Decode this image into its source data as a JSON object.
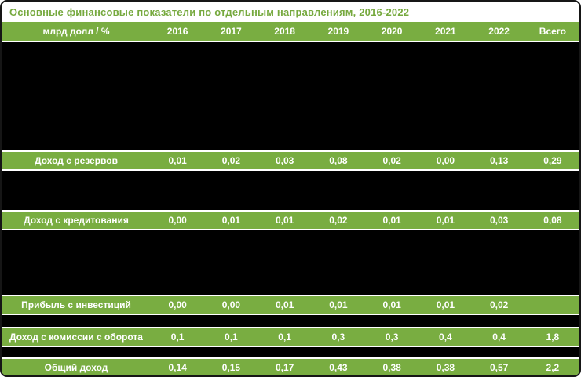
{
  "colors": {
    "accent_green": "#79ad41",
    "title_green": "#76a93e",
    "redacted_black": "#000000",
    "header_text": "#ffffff"
  },
  "chart_data": {
    "type": "table",
    "title": "Основные финансовые показатели по отдельным направлениям, 2016-2022",
    "unit_label": "млрд долл / %",
    "columns": [
      "2016",
      "2017",
      "2018",
      "2019",
      "2020",
      "2021",
      "2022",
      "Всего"
    ],
    "rows": [
      {
        "label": "Доход с резервов",
        "values": [
          "0,01",
          "0,02",
          "0,03",
          "0,08",
          "0,02",
          "0,00",
          "0,13",
          "0,29"
        ]
      },
      {
        "label": "Доход с кредитования",
        "values": [
          "0,00",
          "0,01",
          "0,01",
          "0,02",
          "0,01",
          "0,01",
          "0,03",
          "0,08"
        ]
      },
      {
        "label": "Прибыль с инвестиций",
        "values": [
          "0,00",
          "0,00",
          "0,01",
          "0,01",
          "0,01",
          "0,01",
          "0,02",
          ""
        ]
      },
      {
        "label": "Доход с комиссии с оборота",
        "values": [
          "0,1",
          "0,1",
          "0,1",
          "0,3",
          "0,3",
          "0,4",
          "0,4",
          "1,8"
        ]
      },
      {
        "label": "Общий доход",
        "values": [
          "0,14",
          "0,15",
          "0,17",
          "0,43",
          "0,38",
          "0,38",
          "0,57",
          "2,2"
        ]
      }
    ]
  }
}
